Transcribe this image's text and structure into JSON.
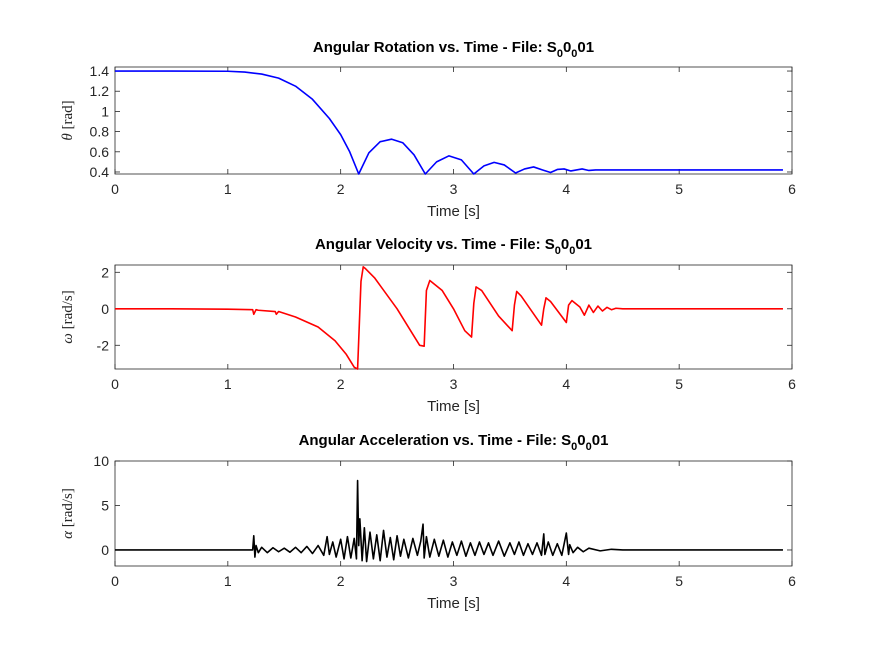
{
  "chart_data": [
    {
      "type": "line",
      "title": "Angular Rotation vs. Time - File: S",
      "title_sub1": "0",
      "title_mid": "0",
      "title_sub2": "0",
      "title_end": "01",
      "xlabel": "Time [s]",
      "ylabel_symbol": "θ",
      "ylabel_unit": "[rad]",
      "xlim": [
        0,
        6
      ],
      "ylim": [
        0.38,
        1.44
      ],
      "xticks": [
        0,
        1,
        2,
        3,
        4,
        5,
        6
      ],
      "yticks": [
        0.4,
        0.6,
        0.8,
        1,
        1.2,
        1.4
      ],
      "ytick_labels": [
        "0.4",
        "0.6",
        "0.8",
        "1",
        "1.2",
        "1.4"
      ],
      "grid": false,
      "series": [
        {
          "color": "#0000ff",
          "x": [
            0,
            0.5,
            1.0,
            1.15,
            1.3,
            1.45,
            1.6,
            1.75,
            1.9,
            2.0,
            2.08,
            2.16,
            2.25,
            2.35,
            2.45,
            2.55,
            2.65,
            2.75,
            2.85,
            2.96,
            3.07,
            3.18,
            3.27,
            3.36,
            3.45,
            3.55,
            3.63,
            3.71,
            3.79,
            3.86,
            3.92,
            3.98,
            4.04,
            4.09,
            4.14,
            4.2,
            4.26,
            4.5,
            5.0,
            5.5,
            5.92
          ],
          "y": [
            1.4,
            1.4,
            1.398,
            1.39,
            1.37,
            1.33,
            1.25,
            1.12,
            0.93,
            0.77,
            0.6,
            0.38,
            0.59,
            0.7,
            0.725,
            0.69,
            0.57,
            0.38,
            0.5,
            0.56,
            0.52,
            0.38,
            0.46,
            0.495,
            0.47,
            0.39,
            0.43,
            0.45,
            0.42,
            0.395,
            0.425,
            0.43,
            0.41,
            0.42,
            0.43,
            0.415,
            0.42,
            0.42,
            0.42,
            0.42,
            0.42
          ]
        }
      ]
    },
    {
      "type": "line",
      "title": "Angular Velocity vs. Time - File: S",
      "title_sub1": "0",
      "title_mid": "0",
      "title_sub2": "0",
      "title_end": "01",
      "xlabel": "Time [s]",
      "ylabel_symbol": "ω",
      "ylabel_unit": "[rad/s]",
      "xlim": [
        0,
        6
      ],
      "ylim": [
        -3.3,
        2.4
      ],
      "xticks": [
        0,
        1,
        2,
        3,
        4,
        5,
        6
      ],
      "yticks": [
        -2,
        0,
        2
      ],
      "ytick_labels": [
        "-2",
        "0",
        "2"
      ],
      "grid": false,
      "series": [
        {
          "color": "#ff0000",
          "x": [
            0,
            0.5,
            1.0,
            1.22,
            1.23,
            1.25,
            1.27,
            1.42,
            1.43,
            1.45,
            1.6,
            1.8,
            1.95,
            2.05,
            2.12,
            2.15,
            2.18,
            2.2,
            2.22,
            2.3,
            2.5,
            2.7,
            2.74,
            2.76,
            2.79,
            2.9,
            3.0,
            3.1,
            3.16,
            3.18,
            3.2,
            3.25,
            3.4,
            3.52,
            3.54,
            3.56,
            3.6,
            3.78,
            3.8,
            3.82,
            3.86,
            4.0,
            4.02,
            4.05,
            4.12,
            4.16,
            4.2,
            4.24,
            4.28,
            4.32,
            4.36,
            4.4,
            4.44,
            4.5,
            5.0,
            5.5,
            5.92
          ],
          "y": [
            0,
            0,
            -0.02,
            -0.05,
            -0.3,
            -0.05,
            -0.08,
            -0.15,
            -0.3,
            -0.15,
            -0.45,
            -1.0,
            -1.75,
            -2.5,
            -3.2,
            -3.3,
            1.5,
            2.3,
            2.2,
            1.7,
            0.0,
            -2.0,
            -2.05,
            1.0,
            1.55,
            1.0,
            0.0,
            -1.2,
            -1.55,
            0.3,
            1.2,
            1.0,
            -0.4,
            -1.2,
            0.2,
            0.95,
            0.7,
            -0.9,
            0.0,
            0.6,
            0.4,
            -0.75,
            0.2,
            0.45,
            0.1,
            -0.35,
            0.2,
            -0.2,
            0.15,
            -0.12,
            0.08,
            -0.05,
            0.03,
            0.0,
            0.0,
            0.0,
            0.0
          ]
        }
      ]
    },
    {
      "type": "line",
      "title": "Angular Acceleration vs. Time - File: S",
      "title_sub1": "0",
      "title_mid": "0",
      "title_sub2": "0",
      "title_end": "01",
      "xlabel": "Time [s]",
      "ylabel_symbol": "α",
      "ylabel_unit": "[rad/s]",
      "xlim": [
        0,
        6
      ],
      "ylim": [
        -1.8,
        10
      ],
      "xticks": [
        0,
        1,
        2,
        3,
        4,
        5,
        6
      ],
      "yticks": [
        0,
        5,
        10
      ],
      "ytick_labels": [
        "0",
        "5",
        "10"
      ],
      "grid": false,
      "series": [
        {
          "color": "#000000",
          "x": [
            0,
            1.2,
            1.22,
            1.23,
            1.24,
            1.25,
            1.27,
            1.3,
            1.35,
            1.4,
            1.45,
            1.5,
            1.55,
            1.6,
            1.65,
            1.7,
            1.75,
            1.8,
            1.85,
            1.88,
            1.9,
            1.93,
            1.96,
            2.0,
            2.03,
            2.06,
            2.09,
            2.12,
            2.14,
            2.15,
            2.16,
            2.17,
            2.19,
            2.21,
            2.23,
            2.26,
            2.29,
            2.32,
            2.35,
            2.38,
            2.41,
            2.44,
            2.47,
            2.5,
            2.53,
            2.56,
            2.6,
            2.64,
            2.68,
            2.71,
            2.73,
            2.74,
            2.76,
            2.79,
            2.83,
            2.87,
            2.91,
            2.95,
            2.99,
            3.03,
            3.07,
            3.11,
            3.15,
            3.19,
            3.23,
            3.27,
            3.31,
            3.35,
            3.4,
            3.45,
            3.5,
            3.54,
            3.58,
            3.62,
            3.66,
            3.7,
            3.74,
            3.78,
            3.8,
            3.81,
            3.84,
            3.88,
            3.92,
            3.96,
            4.0,
            4.02,
            4.03,
            4.06,
            4.1,
            4.15,
            4.2,
            4.3,
            4.4,
            4.5,
            5.0,
            5.5,
            5.92
          ],
          "y": [
            0,
            0,
            0,
            1.6,
            -0.8,
            0.5,
            -0.3,
            0.3,
            -0.3,
            0.25,
            -0.2,
            0.2,
            -0.25,
            0.3,
            -0.3,
            0.4,
            -0.4,
            0.5,
            -0.6,
            1.5,
            -0.5,
            0.9,
            -0.8,
            1.2,
            -1.0,
            1.5,
            -0.9,
            1.3,
            -1.0,
            7.8,
            0.5,
            3.5,
            -1.2,
            2.5,
            -1.3,
            2.0,
            -1.0,
            1.7,
            -1.2,
            2.2,
            -0.8,
            1.4,
            -1.1,
            1.6,
            -0.7,
            1.2,
            -0.9,
            1.3,
            -0.6,
            1.0,
            2.9,
            -0.9,
            1.5,
            -0.8,
            1.2,
            -0.7,
            1.1,
            -0.8,
            0.9,
            -0.6,
            1.0,
            -0.7,
            0.8,
            -0.6,
            0.9,
            -0.5,
            0.8,
            -0.6,
            1.0,
            -0.7,
            0.8,
            -0.5,
            0.9,
            -0.6,
            0.7,
            -0.5,
            0.8,
            -0.6,
            1.8,
            -0.5,
            0.9,
            -0.6,
            0.7,
            -0.6,
            1.9,
            -0.5,
            0.6,
            -0.3,
            0.3,
            -0.2,
            0.2,
            -0.1,
            0.08,
            0,
            0,
            0,
            0
          ]
        }
      ]
    }
  ]
}
